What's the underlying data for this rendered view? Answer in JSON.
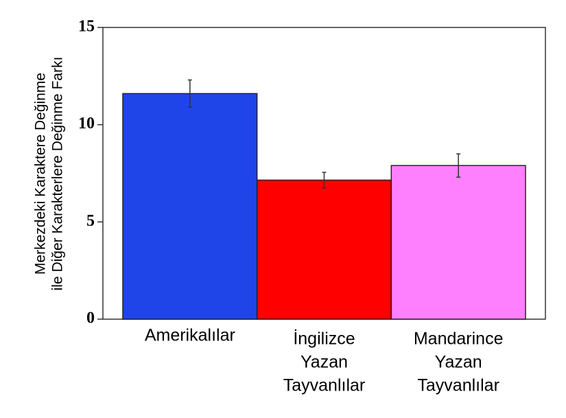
{
  "chart_data": {
    "type": "bar",
    "ylabel": [
      "Merkezdeki Karaktere Değinme",
      "ile Diğer Karakterlere Değinme Farkı"
    ],
    "categories": [
      [
        "Amerikalılar"
      ],
      [
        "İngilizce",
        "Yazan",
        "Tayvanlılar"
      ],
      [
        "Mandarince",
        "Yazan",
        "Tayvanlılar"
      ]
    ],
    "values": [
      11.6,
      7.15,
      7.9
    ],
    "errors": [
      0.7,
      0.4,
      0.6
    ],
    "colors": [
      "#1f45e8",
      "#ff0000",
      "#ff80ff"
    ],
    "ylim": [
      0,
      15
    ],
    "yticks": [
      0,
      5,
      10,
      15
    ]
  }
}
